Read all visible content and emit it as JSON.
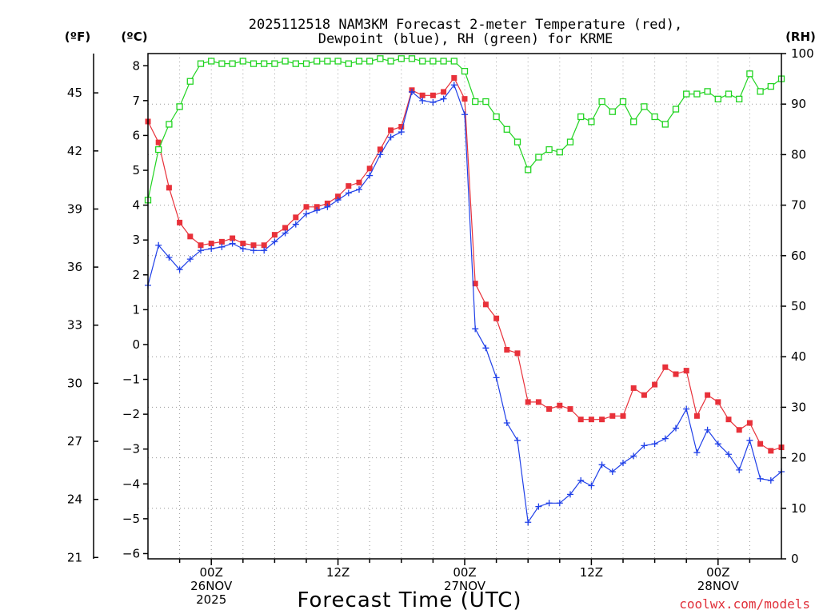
{
  "chart_data": {
    "type": "line",
    "title_line1": "2025112518 NAM3KM Forecast 2-meter Temperature (red),",
    "title_line2": "Dewpoint (blue), RH (green) for KRME",
    "xlabel": "Forecast Time (UTC)",
    "credit": "coolwx.com/models",
    "credit_color": "#e0303a",
    "unit_f": "(ºF)",
    "unit_c": "(ºC)",
    "unit_rh": "(RH)",
    "x_hours": [
      0,
      1,
      2,
      3,
      4,
      5,
      6,
      7,
      8,
      9,
      10,
      11,
      12,
      13,
      14,
      15,
      16,
      17,
      18,
      19,
      20,
      21,
      22,
      23,
      24,
      25,
      26,
      27,
      28,
      29,
      30,
      31,
      32,
      33,
      34,
      35,
      36,
      37,
      38,
      39,
      40,
      41,
      42,
      43,
      44,
      45,
      46,
      47,
      48,
      49,
      50,
      51,
      52,
      53,
      54,
      55,
      56,
      57,
      58,
      59,
      60
    ],
    "xlim": [
      0,
      60
    ],
    "c_range": [
      -6.15,
      8.35
    ],
    "rh_range": [
      0,
      100
    ],
    "x_ticks": [
      {
        "hour": 6,
        "lines": [
          "00Z",
          "26NOV",
          "2025"
        ]
      },
      {
        "hour": 18,
        "lines": [
          "12Z"
        ]
      },
      {
        "hour": 30,
        "lines": [
          "00Z",
          "27NOV"
        ]
      },
      {
        "hour": 42,
        "lines": [
          "12Z"
        ]
      },
      {
        "hour": 54,
        "lines": [
          "00Z",
          "28NOV"
        ]
      }
    ],
    "c_ticks": [
      "8",
      "7",
      "6",
      "5",
      "4",
      "3",
      "2",
      "1",
      "0",
      "−1",
      "−2",
      "−3",
      "−4",
      "−5",
      "−6"
    ],
    "c_tick_values": [
      8,
      7,
      6,
      5,
      4,
      3,
      2,
      1,
      0,
      -1,
      -2,
      -3,
      -4,
      -5,
      -6
    ],
    "f_ticks": [
      "45",
      "42",
      "39",
      "36",
      "33",
      "30",
      "27",
      "24",
      "21"
    ],
    "f_tick_values": [
      45,
      42,
      39,
      36,
      33,
      30,
      27,
      24,
      21
    ],
    "rh_ticks": [
      "100",
      "90",
      "80",
      "70",
      "60",
      "50",
      "40",
      "30",
      "20",
      "10",
      "0"
    ],
    "rh_tick_values": [
      100,
      90,
      80,
      70,
      60,
      50,
      40,
      30,
      20,
      10,
      0
    ],
    "series": [
      {
        "name": "Temperature (red)",
        "color": "#e8313a",
        "axis": "c",
        "marker": "filled-square",
        "values": [
          6.4,
          5.8,
          4.5,
          3.5,
          3.1,
          2.85,
          2.9,
          2.95,
          3.05,
          2.9,
          2.85,
          2.85,
          3.15,
          3.35,
          3.65,
          3.95,
          3.95,
          4.05,
          4.25,
          4.55,
          4.65,
          5.05,
          5.6,
          6.15,
          6.25,
          7.3,
          7.15,
          7.15,
          7.25,
          7.65,
          7.05,
          1.75,
          1.15,
          0.75,
          -0.15,
          -0.25,
          -1.65,
          -1.65,
          -1.85,
          -1.75,
          -1.85,
          -2.15,
          -2.15,
          -2.15,
          -2.05,
          -2.05,
          -1.25,
          -1.45,
          -1.15,
          -0.65,
          -0.85,
          -0.75,
          -2.05,
          -1.45,
          -1.65,
          -2.15,
          -2.45,
          -2.25,
          -2.85,
          -3.05,
          -2.95
        ]
      },
      {
        "name": "Dewpoint (blue)",
        "color": "#2040e8",
        "axis": "c",
        "marker": "plus",
        "values": [
          1.7,
          2.85,
          2.5,
          2.15,
          2.45,
          2.7,
          2.75,
          2.8,
          2.9,
          2.75,
          2.7,
          2.7,
          2.95,
          3.2,
          3.45,
          3.75,
          3.85,
          3.95,
          4.15,
          4.35,
          4.45,
          4.85,
          5.45,
          5.95,
          6.1,
          7.25,
          7.0,
          6.95,
          7.05,
          7.45,
          6.6,
          0.45,
          -0.1,
          -0.95,
          -2.25,
          -2.75,
          -5.1,
          -4.65,
          -4.55,
          -4.55,
          -4.3,
          -3.9,
          -4.05,
          -3.45,
          -3.65,
          -3.4,
          -3.2,
          -2.9,
          -2.85,
          -2.7,
          -2.4,
          -1.85,
          -3.1,
          -2.45,
          -2.85,
          -3.15,
          -3.6,
          -2.75,
          -3.85,
          -3.9,
          -3.65
        ]
      },
      {
        "name": "RH (green)",
        "color": "#22d422",
        "axis": "rh",
        "marker": "open-square",
        "values": [
          71,
          81,
          86,
          89.5,
          94.5,
          98,
          98.5,
          98,
          98,
          98.5,
          98,
          98,
          98,
          98.5,
          98,
          98,
          98.5,
          98.5,
          98.5,
          98,
          98.5,
          98.5,
          99,
          98.5,
          99,
          99,
          98.5,
          98.5,
          98.5,
          98.5,
          96.5,
          90.5,
          90.5,
          87.5,
          85,
          82.5,
          77,
          79.5,
          81,
          80.5,
          82.5,
          87.5,
          86.5,
          90.5,
          88.5,
          90.5,
          86.5,
          89.5,
          87.5,
          86,
          89,
          92,
          92,
          92.5,
          91,
          92,
          91,
          96,
          92.5,
          93.5,
          95
        ]
      }
    ]
  }
}
